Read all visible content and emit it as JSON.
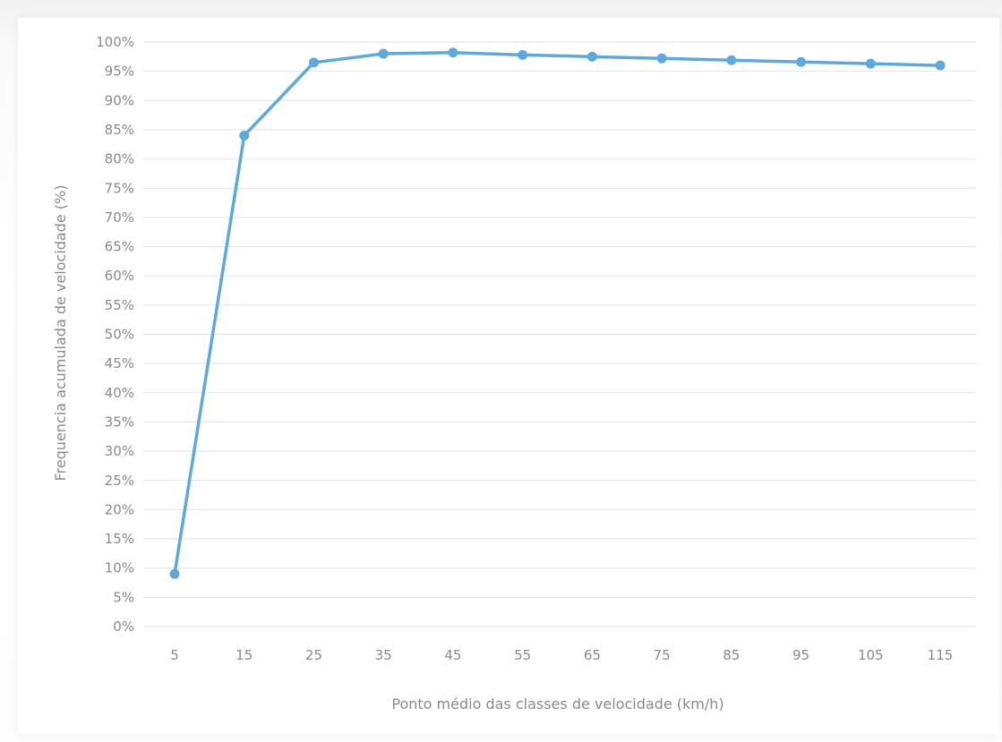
{
  "chart_data": {
    "type": "line",
    "title": "",
    "xlabel": "Ponto médio das classes de velocidade (km/h)",
    "ylabel": "Frequencia acumulada de velocidade (%)",
    "categories": [
      "5",
      "15",
      "25",
      "35",
      "45",
      "55",
      "65",
      "75",
      "85",
      "95",
      "105",
      "115"
    ],
    "y_tick_labels": [
      "0%",
      "5%",
      "10%",
      "15%",
      "20%",
      "25%",
      "30%",
      "35%",
      "40%",
      "45%",
      "50%",
      "55%",
      "60%",
      "65%",
      "70%",
      "75%",
      "80%",
      "85%",
      "90%",
      "95%",
      "100%"
    ],
    "ylim": [
      0,
      100
    ],
    "y_step": 5,
    "grid": true,
    "series": [
      {
        "color": "#5fa8dc",
        "values": [
          9,
          84,
          96.5,
          98,
          98.2,
          97.8,
          97.5,
          97.2,
          96.9,
          96.6,
          96.3,
          96
        ]
      }
    ]
  }
}
